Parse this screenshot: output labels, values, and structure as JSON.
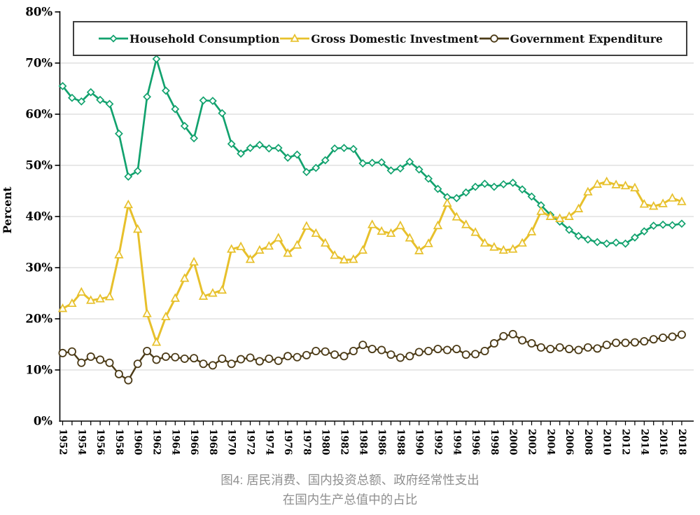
{
  "caption": {
    "line1": "图4: 居民消费、国内投资总额、政府经常性支出",
    "line2": "在国内生产总值中的占比"
  },
  "colors": {
    "household_consumption": "#12a26e",
    "gross_domestic_investment": "#e7c02b",
    "government_expenditure": "#4b3a16",
    "gridline": "#d9d9d9",
    "axis": "#000000",
    "caption_text": "#8f8f8f",
    "legend_border": "#3f3f3f"
  },
  "chart_data": {
    "type": "line",
    "title": "",
    "xlabel": "",
    "ylabel": "Percent",
    "ylim": [
      0,
      80
    ],
    "xlim": [
      1952,
      2018
    ],
    "grid": true,
    "legend_position": "top",
    "y_ticks": [
      0,
      10,
      20,
      30,
      40,
      50,
      60,
      70,
      80
    ],
    "y_tick_labels": [
      "0%",
      "10%",
      "20%",
      "30%",
      "40%",
      "50%",
      "60%",
      "70%",
      "80%"
    ],
    "x_tick_step": 2,
    "x_tick_labels": [
      "1952",
      "1954",
      "1956",
      "1958",
      "1960",
      "1962",
      "1964",
      "1966",
      "1968",
      "1970",
      "1972",
      "1974",
      "1976",
      "1978",
      "1980",
      "1982",
      "1984",
      "1986",
      "1988",
      "1990",
      "1992",
      "1994",
      "1996",
      "1998",
      "2000",
      "2002",
      "2004",
      "2006",
      "2008",
      "2010",
      "2012",
      "2014",
      "2016",
      "2018"
    ],
    "x": [
      1952,
      1953,
      1954,
      1955,
      1956,
      1957,
      1958,
      1959,
      1960,
      1961,
      1962,
      1963,
      1964,
      1965,
      1966,
      1967,
      1968,
      1969,
      1970,
      1971,
      1972,
      1973,
      1974,
      1975,
      1976,
      1977,
      1978,
      1979,
      1980,
      1981,
      1982,
      1983,
      1984,
      1985,
      1986,
      1987,
      1988,
      1989,
      1990,
      1991,
      1992,
      1993,
      1994,
      1995,
      1996,
      1997,
      1998,
      1999,
      2000,
      2001,
      2002,
      2003,
      2004,
      2005,
      2006,
      2007,
      2008,
      2009,
      2010,
      2011,
      2012,
      2013,
      2014,
      2015,
      2016,
      2017,
      2018
    ],
    "series": [
      {
        "name": "Household Consumption",
        "marker": "diamond",
        "color": "#12a26e",
        "values": [
          65.5,
          63.2,
          62.5,
          64.3,
          62.8,
          62.0,
          56.2,
          47.8,
          48.9,
          63.4,
          70.8,
          64.6,
          61.0,
          57.7,
          55.3,
          62.7,
          62.6,
          60.2,
          54.2,
          52.3,
          53.4,
          54.0,
          53.3,
          53.4,
          51.5,
          52.1,
          48.7,
          49.5,
          51.0,
          53.3,
          53.4,
          53.2,
          50.4,
          50.5,
          50.6,
          49.0,
          49.4,
          50.7,
          49.2,
          47.4,
          45.4,
          43.8,
          43.6,
          44.7,
          45.8,
          46.4,
          45.8,
          46.3,
          46.6,
          45.3,
          43.9,
          42.2,
          40.3,
          39.0,
          37.4,
          36.2,
          35.5,
          35.0,
          34.7,
          34.9,
          34.7,
          35.9,
          37.1,
          38.2,
          38.4,
          38.3,
          38.6
        ]
      },
      {
        "name": "Gross Domestic Investment",
        "marker": "triangle",
        "color": "#e7c02b",
        "values": [
          22.0,
          23.0,
          25.2,
          23.6,
          23.9,
          24.3,
          32.5,
          42.3,
          37.5,
          21.0,
          15.4,
          20.4,
          24.0,
          27.9,
          31.1,
          24.4,
          25.0,
          25.6,
          33.6,
          34.1,
          31.6,
          33.4,
          34.2,
          35.8,
          32.8,
          34.4,
          38.1,
          36.7,
          34.8,
          32.4,
          31.5,
          31.6,
          33.4,
          38.4,
          37.1,
          36.7,
          38.2,
          35.8,
          33.3,
          34.7,
          38.2,
          42.6,
          39.9,
          38.4,
          36.9,
          34.8,
          34.0,
          33.4,
          33.6,
          34.8,
          37.0,
          41.0,
          40.0,
          39.6,
          40.0,
          41.5,
          44.8,
          46.3,
          46.8,
          46.2,
          46.0,
          45.6,
          42.4,
          42.0,
          42.5,
          43.6,
          42.9
        ]
      },
      {
        "name": "Government Expenditure",
        "marker": "circle",
        "color": "#4b3a16",
        "values": [
          13.3,
          13.6,
          11.4,
          12.6,
          12.0,
          11.4,
          9.2,
          8.0,
          11.2,
          13.7,
          12.0,
          12.6,
          12.5,
          12.2,
          12.3,
          11.2,
          10.9,
          12.2,
          11.2,
          12.1,
          12.4,
          11.7,
          12.2,
          11.8,
          12.7,
          12.5,
          12.9,
          13.7,
          13.6,
          13.0,
          12.7,
          13.7,
          14.9,
          14.1,
          13.9,
          13.0,
          12.4,
          12.7,
          13.5,
          13.7,
          14.1,
          13.9,
          14.1,
          13.0,
          13.1,
          13.7,
          15.2,
          16.6,
          17.0,
          15.8,
          15.2,
          14.4,
          14.1,
          14.4,
          14.1,
          13.9,
          14.4,
          14.2,
          14.9,
          15.3,
          15.3,
          15.4,
          15.6,
          16.0,
          16.3,
          16.5,
          16.9
        ]
      }
    ]
  }
}
